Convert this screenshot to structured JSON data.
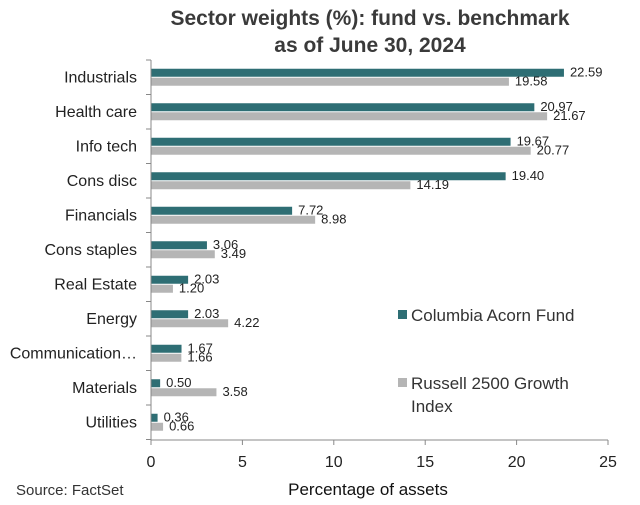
{
  "chart_data": {
    "type": "bar",
    "orientation": "horizontal",
    "title_line1": "Sector weights (%): fund vs. benchmark",
    "title_line2": "as of  June 30, 2024",
    "xlabel": "Percentage of assets",
    "xlim": [
      0,
      25
    ],
    "xticks": [
      "0",
      "5",
      "10",
      "15",
      "20",
      "25"
    ],
    "categories": [
      "Industrials",
      "Health care",
      "Info tech",
      "Cons disc",
      "Financials",
      "Cons staples",
      "Real Estate",
      "Energy",
      "Communication…",
      "Materials",
      "Utilities"
    ],
    "series": [
      {
        "name": "Columbia Acorn Fund",
        "color": "#2e6e74",
        "values": [
          22.59,
          20.97,
          19.67,
          19.4,
          7.72,
          3.06,
          2.03,
          2.03,
          1.67,
          0.5,
          0.36
        ],
        "labels": [
          "22.59",
          "20.97",
          "19.67",
          "19.40",
          "7.72",
          "3.06",
          "2.03",
          "2.03",
          "1.67",
          "0.50",
          "0.36"
        ]
      },
      {
        "name": "Russell 2500 Growth Index",
        "legend_line1": "Russell 2500 Growth",
        "legend_line2": "Index",
        "color": "#b5b5b5",
        "values": [
          19.58,
          21.67,
          20.77,
          14.19,
          8.98,
          3.49,
          1.2,
          4.22,
          1.66,
          3.58,
          0.66
        ],
        "labels": [
          "19.58",
          "21.67",
          "20.77",
          "14.19",
          "8.98",
          "3.49",
          "1.20",
          "4.22",
          "1.66",
          "3.58",
          "0.66"
        ]
      }
    ],
    "source": "Source: FactSet",
    "legend_position": "right"
  }
}
